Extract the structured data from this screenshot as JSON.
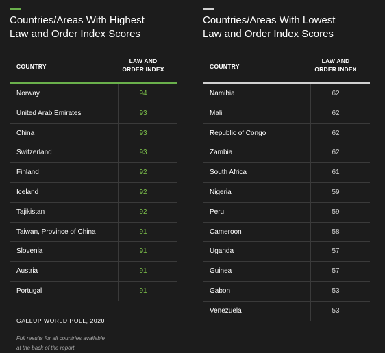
{
  "left": {
    "title_line1": "Countries/Areas With Highest",
    "title_line2": "Law and Order Index Scores",
    "accent_color": "#6ab04c",
    "col_country": "COUNTRY",
    "col_score_line1": "LAW AND",
    "col_score_line2": "ORDER INDEX",
    "rows": [
      {
        "country": "Norway",
        "score": "94"
      },
      {
        "country": "United Arab Emirates",
        "score": "93"
      },
      {
        "country": "China",
        "score": "93"
      },
      {
        "country": "Switzerland",
        "score": "93"
      },
      {
        "country": "Finland",
        "score": "92"
      },
      {
        "country": "Iceland",
        "score": "92"
      },
      {
        "country": "Tajikistan",
        "score": "92"
      },
      {
        "country": "Taiwan, Province of China",
        "score": "91"
      },
      {
        "country": "Slovenia",
        "score": "91"
      },
      {
        "country": "Austria",
        "score": "91"
      },
      {
        "country": "Portugal",
        "score": "91"
      }
    ],
    "source": "GALLUP WORLD POLL, 2020",
    "footnote_line1": "Full results for all countries available",
    "footnote_line2": "at the back of the report."
  },
  "right": {
    "title_line1": "Countries/Areas With Lowest",
    "title_line2": "Law and Order Index Scores",
    "accent_color": "#d0d0d0",
    "col_country": "COUNTRY",
    "col_score_line1": "LAW AND",
    "col_score_line2": "ORDER INDEX",
    "rows": [
      {
        "country": "Namibia",
        "score": "62"
      },
      {
        "country": "Mali",
        "score": "62"
      },
      {
        "country": "Republic of Congo",
        "score": "62"
      },
      {
        "country": "Zambia",
        "score": "62"
      },
      {
        "country": "South Africa",
        "score": "61"
      },
      {
        "country": "Nigeria",
        "score": "59"
      },
      {
        "country": "Peru",
        "score": "59"
      },
      {
        "country": "Cameroon",
        "score": "58"
      },
      {
        "country": "Uganda",
        "score": "57"
      },
      {
        "country": "Guinea",
        "score": "57"
      },
      {
        "country": "Gabon",
        "score": "53"
      },
      {
        "country": "Venezuela",
        "score": "53"
      }
    ]
  }
}
